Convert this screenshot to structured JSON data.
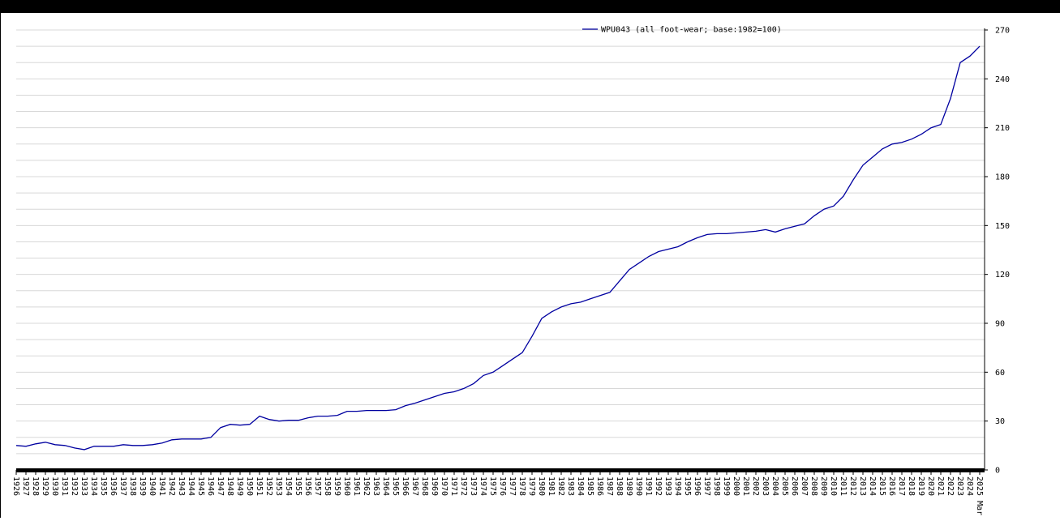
{
  "chart_data": {
    "type": "line",
    "x": [
      1926,
      1927,
      1928,
      1929,
      1930,
      1931,
      1932,
      1933,
      1934,
      1935,
      1936,
      1937,
      1938,
      1939,
      1940,
      1941,
      1942,
      1943,
      1944,
      1945,
      1946,
      1947,
      1948,
      1949,
      1950,
      1951,
      1952,
      1953,
      1954,
      1955,
      1956,
      1957,
      1958,
      1959,
      1960,
      1961,
      1962,
      1963,
      1964,
      1965,
      1966,
      1967,
      1968,
      1969,
      1970,
      1971,
      1972,
      1973,
      1974,
      1975,
      1976,
      1977,
      1978,
      1979,
      1980,
      1981,
      1982,
      1983,
      1984,
      1985,
      1986,
      1987,
      1988,
      1989,
      1990,
      1991,
      1992,
      1993,
      1994,
      1995,
      1996,
      1997,
      1998,
      1999,
      2000,
      2001,
      2002,
      2003,
      2004,
      2005,
      2006,
      2007,
      2008,
      2009,
      2010,
      2011,
      2012,
      2013,
      2014,
      2015,
      2016,
      2017,
      2018,
      2019,
      2020,
      2021,
      2022,
      2023,
      2024,
      2025
    ],
    "series": [
      {
        "name": "WPU043 (all foot-wear; base:1982=100)",
        "color": "#0000a0",
        "values": [
          15,
          14.5,
          16,
          17,
          15.5,
          15,
          13.5,
          12.5,
          14.5,
          14.5,
          14.5,
          15.5,
          15,
          15,
          15.5,
          16.5,
          18.5,
          19,
          19,
          19,
          20,
          26,
          28,
          27.5,
          28,
          33,
          31,
          30,
          30.5,
          30.5,
          32,
          33,
          33,
          33.5,
          36,
          36,
          36.5,
          36.5,
          36.5,
          37,
          39.5,
          41,
          43,
          45,
          47,
          48,
          50,
          53,
          58,
          60,
          64,
          68,
          72,
          82,
          93,
          97,
          100,
          102,
          103,
          105,
          107,
          109,
          116,
          123,
          127,
          131,
          134,
          135.5,
          137,
          140,
          142.5,
          144.5,
          145,
          145,
          145.5,
          146,
          146.5,
          147.5,
          146,
          148,
          149.5,
          151,
          156,
          160,
          162,
          168,
          178,
          187,
          192,
          197,
          200,
          201,
          203,
          206,
          210,
          212,
          228,
          250,
          254,
          260
        ]
      }
    ],
    "xlim": [
      1926,
      2025
    ],
    "xticks": [
      1926,
      1927,
      1928,
      1929,
      1930,
      1931,
      1932,
      1933,
      1934,
      1935,
      1936,
      1937,
      1938,
      1939,
      1940,
      1941,
      1942,
      1943,
      1944,
      1945,
      1946,
      1947,
      1948,
      1949,
      1950,
      1951,
      1952,
      1953,
      1954,
      1955,
      1956,
      1957,
      1958,
      1959,
      1960,
      1961,
      1962,
      1963,
      1964,
      1965,
      1966,
      1967,
      1968,
      1969,
      1970,
      1971,
      1972,
      1973,
      1974,
      1975,
      1976,
      1977,
      1978,
      1979,
      1980,
      1981,
      1982,
      1983,
      1984,
      1985,
      1986,
      1987,
      1988,
      1989,
      1990,
      1991,
      1992,
      1993,
      1994,
      1995,
      1996,
      1997,
      1998,
      1999,
      2000,
      2001,
      2002,
      2003,
      2004,
      2005,
      2006,
      2007,
      2008,
      2009,
      2010,
      2011,
      2012,
      2013,
      2014,
      2015,
      2016,
      2017,
      2018,
      2019,
      2020,
      2021,
      2022,
      2023,
      2024,
      {
        "value": 2025,
        "label": "2025 Mar"
      }
    ],
    "ylim": [
      0,
      270
    ],
    "yticks": [
      0,
      30,
      60,
      90,
      120,
      150,
      180,
      210,
      240,
      270
    ],
    "ygrid": [
      0,
      10,
      20,
      30,
      40,
      50,
      60,
      70,
      80,
      90,
      100,
      110,
      120,
      130,
      140,
      150,
      160,
      170,
      180,
      190,
      200,
      210,
      220,
      230,
      240,
      250,
      260,
      270
    ],
    "grid": true
  }
}
